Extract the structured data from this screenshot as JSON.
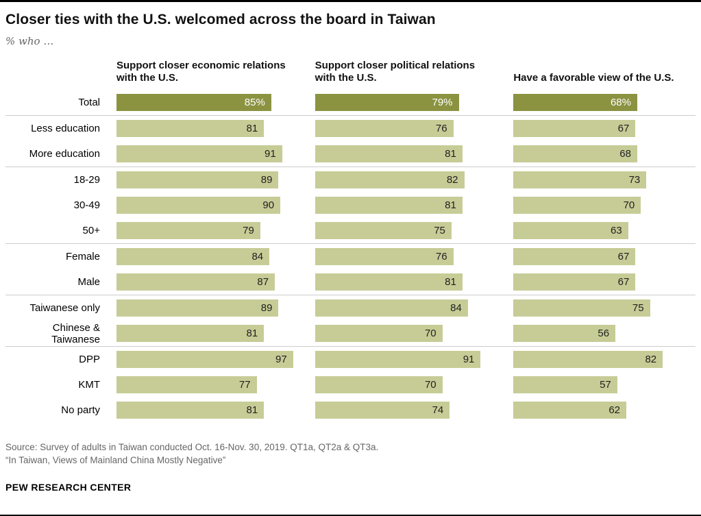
{
  "header": {
    "title": "Closer ties with the U.S. welcomed across the board in Taiwan",
    "subtitle": "% who …"
  },
  "chart_data": {
    "type": "bar",
    "orientation": "horizontal",
    "unit": "%",
    "xlim": [
      0,
      100
    ],
    "grid": false,
    "legend_position": "column-headers",
    "categories": [
      "Total",
      "Less education",
      "More education",
      "18-29",
      "30-49",
      "50+",
      "Female",
      "Male",
      "Taiwanese only",
      "Chinese & Taiwanese",
      "DPP",
      "KMT",
      "No party"
    ],
    "group_sizes": [
      1,
      2,
      3,
      2,
      2,
      3
    ],
    "series": [
      {
        "name": "Support closer economic relations with the U.S.",
        "values": [
          85,
          81,
          91,
          89,
          90,
          79,
          84,
          87,
          89,
          81,
          97,
          77,
          81
        ]
      },
      {
        "name": "Support closer political relations with the U.S.",
        "values": [
          79,
          76,
          81,
          82,
          81,
          75,
          76,
          81,
          84,
          70,
          91,
          70,
          74
        ]
      },
      {
        "name": "Have a favorable view of the U.S.",
        "values": [
          68,
          67,
          68,
          73,
          70,
          63,
          67,
          67,
          75,
          56,
          82,
          57,
          62
        ]
      }
    ],
    "total_value_suffix": "%",
    "colors": {
      "bar": "#c7cc96",
      "total_bar": "#8b9341",
      "separator": "#cccccc"
    }
  },
  "footer": {
    "source_line1": "Source: Survey of adults in Taiwan conducted Oct. 16-Nov. 30, 2019. QT1a, QT2a & QT3a.",
    "source_line2": "“In Taiwan, Views of Mainland China Mostly Negative”",
    "brand": "PEW RESEARCH CENTER"
  }
}
